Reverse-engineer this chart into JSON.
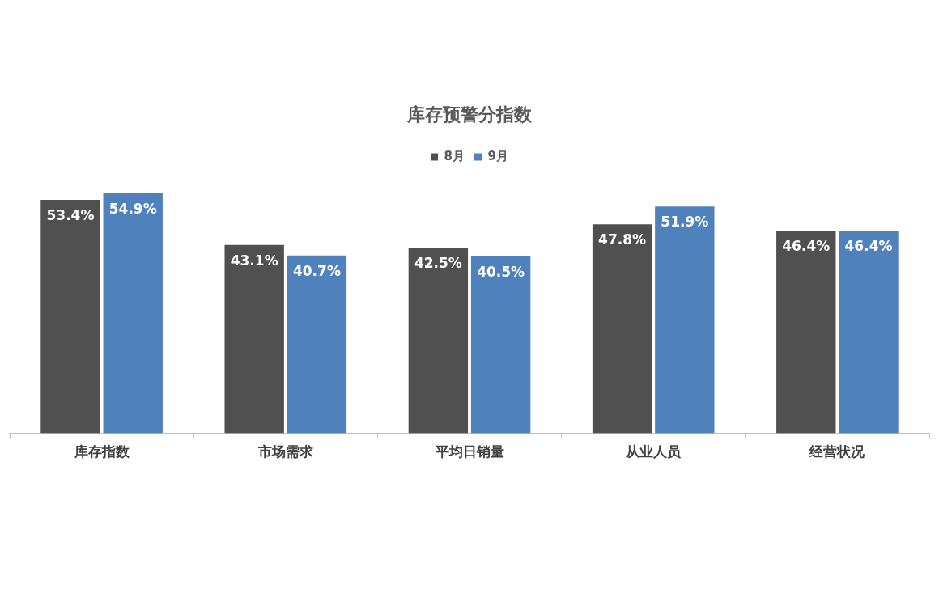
{
  "chart_data": {
    "type": "bar",
    "title": "库存预警分指数",
    "categories": [
      "库存指数",
      "市场需求",
      "平均日销量",
      "从业人员",
      "经营状况"
    ],
    "series": [
      {
        "name": "8月",
        "color": "#505050",
        "values": [
          53.4,
          43.1,
          42.5,
          47.8,
          46.4
        ],
        "value_labels": [
          "53.4%",
          "43.1%",
          "42.5%",
          "47.8%",
          "46.4%"
        ]
      },
      {
        "name": "9月",
        "color": "#4f81bd",
        "values": [
          54.9,
          40.7,
          40.5,
          51.9,
          46.4
        ],
        "value_labels": [
          "54.9%",
          "40.7%",
          "40.5%",
          "51.9%",
          "46.4%"
        ]
      }
    ],
    "grid": false,
    "legend": "top"
  }
}
